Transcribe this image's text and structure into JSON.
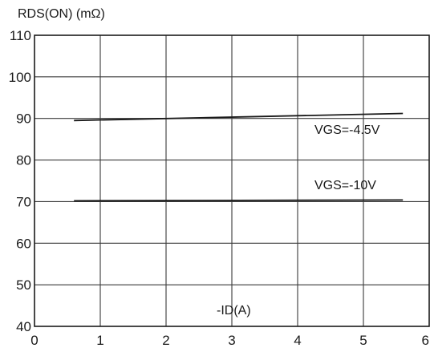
{
  "chart_data": {
    "type": "line",
    "ylabel": "RDS(ON) (mΩ)",
    "xlabel": "-ID(A)",
    "xlim": [
      0,
      6
    ],
    "ylim": [
      40,
      110
    ],
    "x_ticks": [
      "0",
      "1",
      "2",
      "3",
      "4",
      "5",
      "6"
    ],
    "y_ticks": [
      "40",
      "50",
      "60",
      "70",
      "80",
      "90",
      "100",
      "110"
    ],
    "grid": true,
    "series": [
      {
        "name": "VGS=-4.5V",
        "x": [
          0.6,
          5.6
        ],
        "y": [
          89.5,
          91.2
        ]
      },
      {
        "name": "VGS=-10V",
        "x": [
          0.6,
          5.6
        ],
        "y": [
          70.2,
          70.4
        ]
      }
    ]
  }
}
